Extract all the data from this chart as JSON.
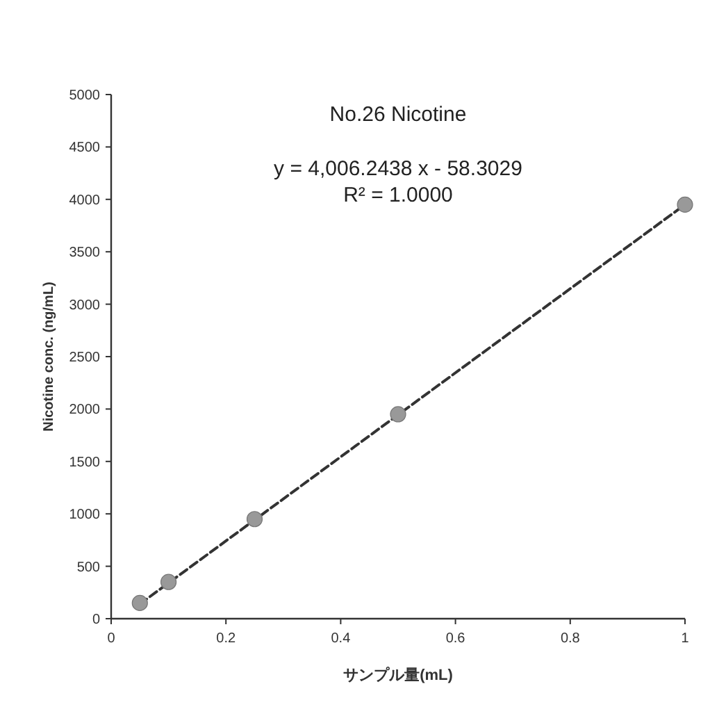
{
  "chart_data": {
    "type": "scatter",
    "title": "No.26 Nicotine",
    "xlabel": "サンプル量(mL)",
    "ylabel": "Nicotine conc. (ng/mL)",
    "annotations": [
      "y = 4,006.2438 x - 58.3029",
      "R² = 1.0000"
    ],
    "xlim": [
      0,
      1
    ],
    "xticks": [
      0,
      0.2,
      0.4,
      0.6,
      0.8,
      1
    ],
    "ylim": [
      0,
      5000
    ],
    "yticks": [
      0,
      500,
      1000,
      1500,
      2000,
      2500,
      3000,
      3500,
      4000,
      4500,
      5000
    ],
    "grid": false,
    "series": [
      {
        "color": "#999999",
        "marker": "circle",
        "x": [
          0.05,
          0.1,
          0.25,
          0.5,
          1
        ],
        "values": [
          150,
          350,
          950,
          1950,
          3950
        ]
      },
      {
        "type": "line",
        "color": "#333333",
        "line_style": "dashed",
        "marker": "none",
        "x": [
          0.05,
          1
        ],
        "values": [
          140,
          3950
        ]
      }
    ]
  }
}
